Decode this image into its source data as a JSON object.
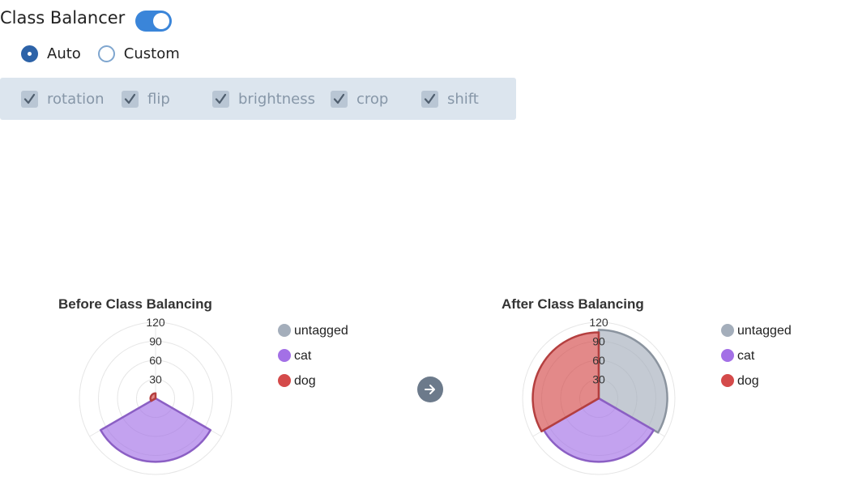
{
  "header": {
    "title": "Class Balancer",
    "toggle_on": true
  },
  "mode": {
    "options": [
      {
        "label": "Auto",
        "selected": true
      },
      {
        "label": "Custom",
        "selected": false
      }
    ]
  },
  "augmentations": [
    {
      "label": "rotation",
      "checked": true
    },
    {
      "label": "flip",
      "checked": true
    },
    {
      "label": "brightness",
      "checked": true
    },
    {
      "label": "crop",
      "checked": true
    },
    {
      "label": "shift",
      "checked": true
    }
  ],
  "colors": {
    "untagged": "#a4aebb",
    "cat": "#a370e6",
    "dog": "#d44a4a",
    "toggle_accent": "#3a85d9",
    "panel_bg": "#dce5ee"
  },
  "nav": {
    "arrow_icon": "arrow-right-icon"
  },
  "chart_data": [
    {
      "type": "polar-area",
      "title": "Before Class Balancing",
      "categories": [
        "untagged",
        "cat",
        "dog"
      ],
      "values": [
        0,
        100,
        8
      ],
      "rlim": [
        0,
        120
      ],
      "ticks": [
        30,
        60,
        90,
        120
      ],
      "legend": "right"
    },
    {
      "type": "polar-area",
      "title": "After Class Balancing",
      "categories": [
        "untagged",
        "cat",
        "dog"
      ],
      "values": [
        108,
        100,
        104
      ],
      "rlim": [
        0,
        120
      ],
      "ticks": [
        30,
        60,
        90,
        120
      ],
      "legend": "right"
    }
  ]
}
